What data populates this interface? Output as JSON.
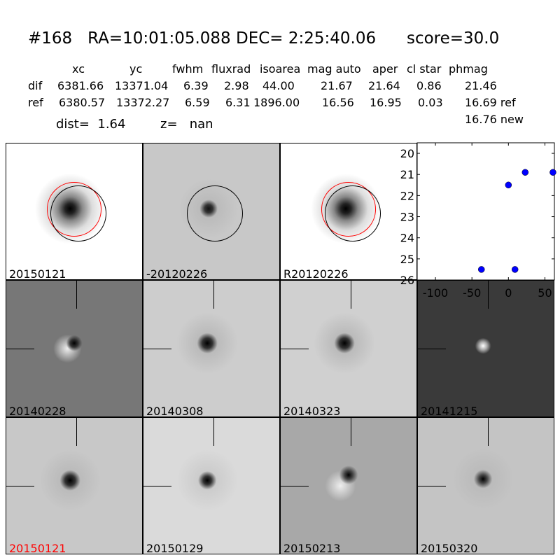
{
  "title": "#168   RA=10:01:05.088 DEC= 2:25:40.06      score=30.0",
  "table": {
    "headers": [
      "xc",
      "yc",
      "fwhm",
      "fluxrad",
      "isoarea",
      "mag auto",
      "aper",
      "cl star",
      "phmag"
    ],
    "rows": [
      {
        "label": "dif",
        "values": [
          "6381.66",
          "13371.04",
          "6.39",
          "2.98",
          "44.00",
          "21.67",
          "21.64",
          "0.86",
          "21.46"
        ]
      },
      {
        "label": "ref",
        "values": [
          "6380.57",
          "13372.27",
          "6.59",
          "6.31",
          "1896.00",
          "16.56",
          "16.95",
          "0.03",
          "16.69 ref"
        ]
      }
    ],
    "extra": "16.76 new"
  },
  "dist": "dist=  1.64",
  "z": "z=   nan",
  "panels": [
    {
      "label": "20150121",
      "color": "#000000"
    },
    {
      "label": "-20120226",
      "color": "#000000"
    },
    {
      "label": "R20120226",
      "color": "#000000"
    },
    {
      "label": "20140228",
      "color": "#000000"
    },
    {
      "label": "20140308",
      "color": "#000000"
    },
    {
      "label": "20140323",
      "color": "#000000"
    },
    {
      "label": "20141215",
      "color": "#000000"
    },
    {
      "label": "20150121",
      "color": "#ff0000"
    },
    {
      "label": "20150129",
      "color": "#000000"
    },
    {
      "label": "20150213",
      "color": "#000000"
    },
    {
      "label": "20150320",
      "color": "#000000"
    }
  ],
  "chart_data": {
    "type": "scatter",
    "x": [
      -37,
      0,
      23,
      61,
      9
    ],
    "y": [
      25.5,
      21.5,
      20.9,
      20.9,
      25.5
    ],
    "xlim": [
      -125,
      63
    ],
    "ylim": [
      26,
      19.5
    ],
    "xticks": [
      "-100",
      "-50",
      "0",
      "50"
    ],
    "xtick_values": [
      -100,
      -50,
      0,
      50
    ],
    "yticks": [
      "20",
      "21",
      "22",
      "23",
      "24",
      "25",
      "26"
    ],
    "ytick_values": [
      20,
      21,
      22,
      23,
      24,
      25,
      26
    ],
    "marker_color": "#0000ff",
    "y_inverted": true,
    "grid": false
  }
}
